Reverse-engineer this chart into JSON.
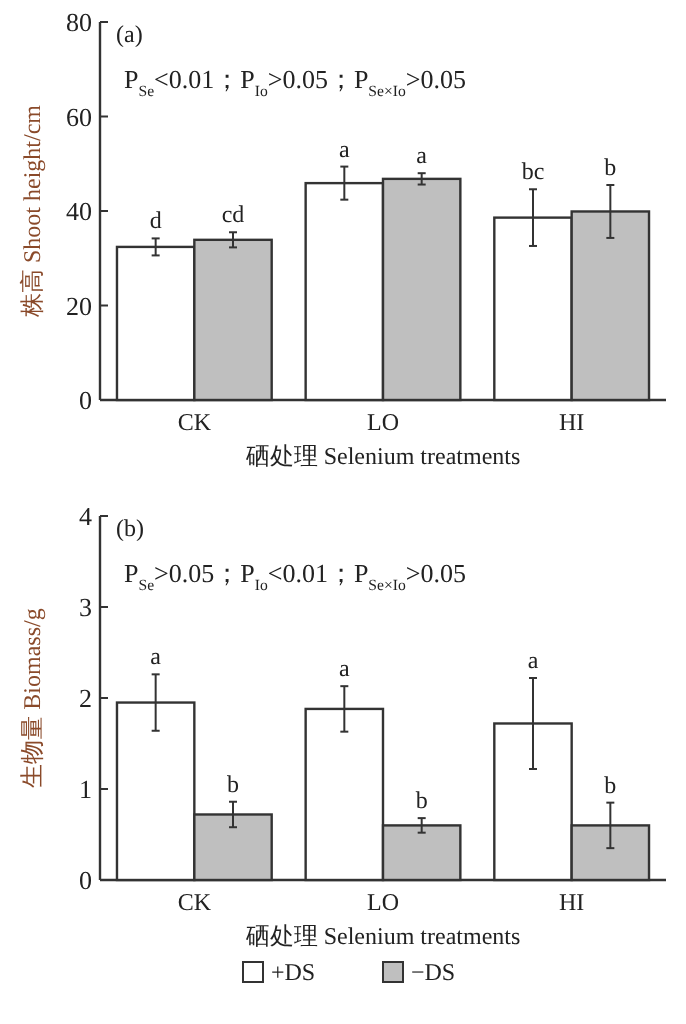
{
  "chart_data": [
    {
      "type": "bar",
      "title": "(a)",
      "xlabel": "硒处理 Selenium treatments",
      "ylabel": "株高 Shoot height/cm",
      "categories": [
        "CK",
        "LO",
        "HI"
      ],
      "ylim": [
        0,
        80
      ],
      "yticks": [
        0,
        20,
        40,
        60,
        80
      ],
      "series": [
        {
          "color": "#ffffff",
          "values": [
            32.4,
            45.9,
            38.6
          ],
          "errors": [
            1.8,
            3.5,
            6.0
          ],
          "value_labels": [
            "d",
            "a",
            "bc"
          ]
        },
        {
          "color": "#bfbfbf",
          "values": [
            33.9,
            46.8,
            39.9
          ],
          "errors": [
            1.6,
            1.2,
            5.6
          ],
          "value_labels": [
            "cd",
            "a",
            "b"
          ]
        }
      ],
      "annotations": [
        "P$_{Se}$<0.01；P$_{Io}$>0.05；P$_{Se×Io}$>0.05"
      ]
    },
    {
      "type": "bar",
      "title": "(b)",
      "xlabel": "硒处理 Selenium treatments",
      "ylabel": "生物量 Biomass/g",
      "categories": [
        "CK",
        "LO",
        "HI"
      ],
      "ylim": [
        0,
        4
      ],
      "yticks": [
        0,
        1,
        2,
        3,
        4
      ],
      "legend": "bottom",
      "series": [
        {
          "name": "+DS",
          "color": "#ffffff",
          "values": [
            1.95,
            1.88,
            1.72
          ],
          "errors": [
            0.31,
            0.25,
            0.5
          ],
          "value_labels": [
            "a",
            "a",
            "a"
          ]
        },
        {
          "name": "−DS",
          "color": "#bfbfbf",
          "values": [
            0.72,
            0.6,
            0.6
          ],
          "errors": [
            0.14,
            0.08,
            0.25
          ],
          "value_labels": [
            "b",
            "b",
            "b"
          ]
        }
      ],
      "annotations": [
        "P$_{Se}$>0.05；P$_{Io}$<0.01；P$_{Se×Io}$>0.05"
      ]
    }
  ]
}
